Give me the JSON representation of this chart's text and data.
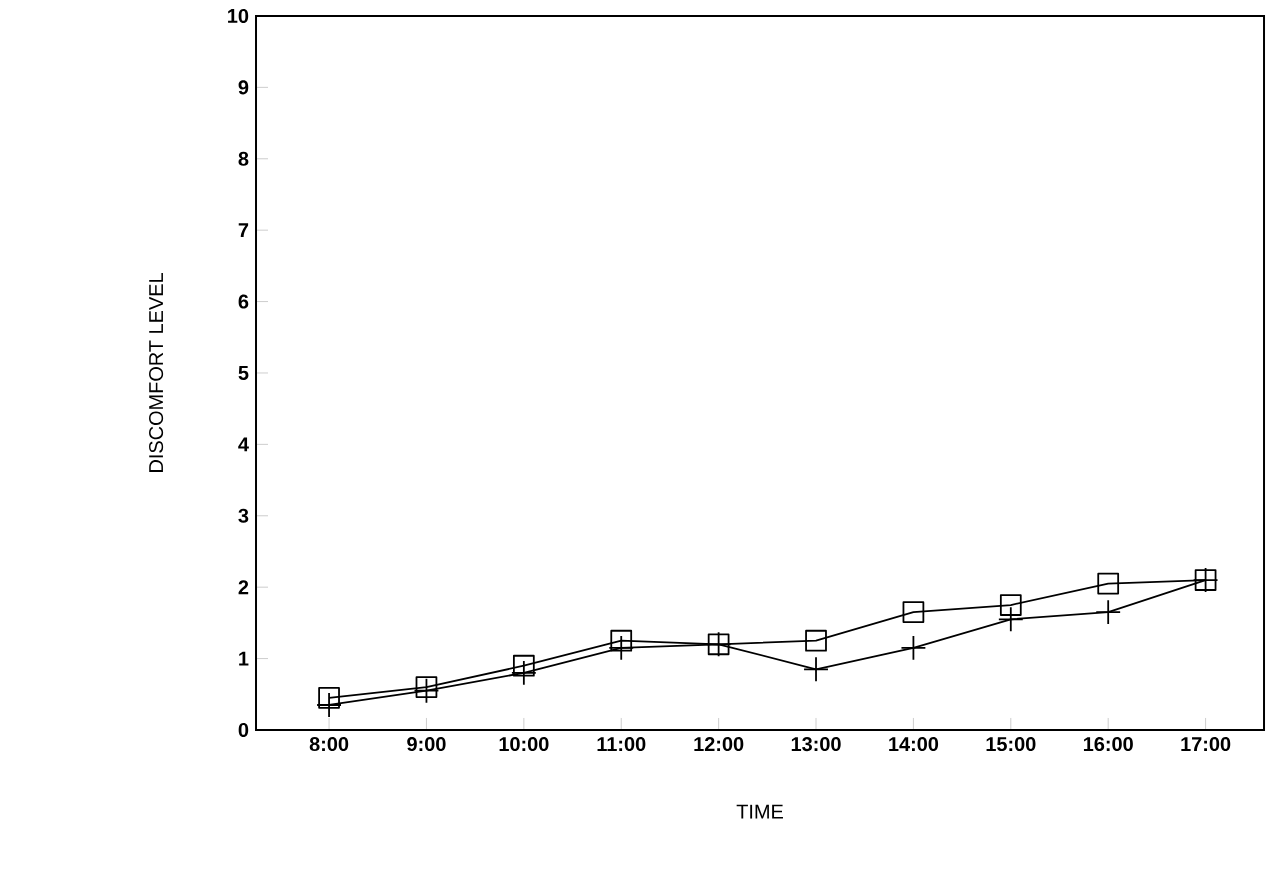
{
  "chart_data": {
    "type": "line",
    "xlabel": "TIME",
    "ylabel": "DISCOMFORT LEVEL",
    "categories": [
      "8:00",
      "9:00",
      "10:00",
      "11:00",
      "12:00",
      "13:00",
      "14:00",
      "15:00",
      "16:00",
      "17:00"
    ],
    "series": [
      {
        "color": "#000000",
        "marker": "square",
        "values": [
          0.45,
          0.6,
          0.9,
          1.25,
          1.2,
          1.25,
          1.65,
          1.75,
          2.05,
          2.1
        ]
      },
      {
        "color": "#000000",
        "marker": "cross",
        "values": [
          0.35,
          0.55,
          0.8,
          1.15,
          1.2,
          0.85,
          1.15,
          1.55,
          1.65,
          2.1
        ]
      }
    ],
    "ylim": [
      0,
      10
    ],
    "yticks": [
      0,
      1,
      2,
      3,
      4,
      5,
      6,
      7,
      8,
      9,
      10
    ],
    "grid": false,
    "line_style": "solid"
  }
}
